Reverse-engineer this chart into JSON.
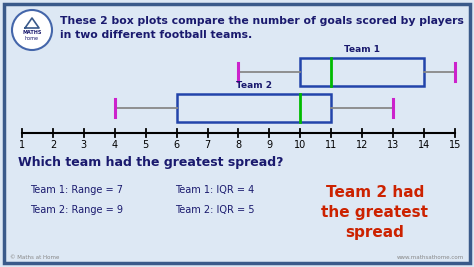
{
  "title_line1": "These 2 box plots compare the number of goals scored by players",
  "title_line2": "in two different football teams.",
  "background_color": "#dde8f4",
  "border_color": "#3a5a8a",
  "axis_min": 1,
  "axis_max": 15,
  "team1": {
    "label": "Team 1",
    "min": 8,
    "q1": 10,
    "median": 11,
    "q3": 14,
    "max": 15,
    "box_color": "#2244aa",
    "median_color": "#00bb00",
    "whisker_color": "#cc22cc"
  },
  "team2": {
    "label": "Team 2",
    "min": 4,
    "q1": 6,
    "median": 10,
    "q3": 11,
    "max": 13,
    "box_color": "#2244aa",
    "median_color": "#00bb00",
    "whisker_color": "#cc22cc"
  },
  "question": "Which team had the greatest spread?",
  "stats": [
    "Team 1: Range = 7",
    "Team 2: Range = 9",
    "Team 1: IQR = 4",
    "Team 2: IQR = 5"
  ],
  "answer": "Team 2 had\nthe greatest\nspread",
  "answer_color": "#cc2200",
  "footer_left": "© Maths at Home",
  "footer_right": "www.mathsathome.com"
}
